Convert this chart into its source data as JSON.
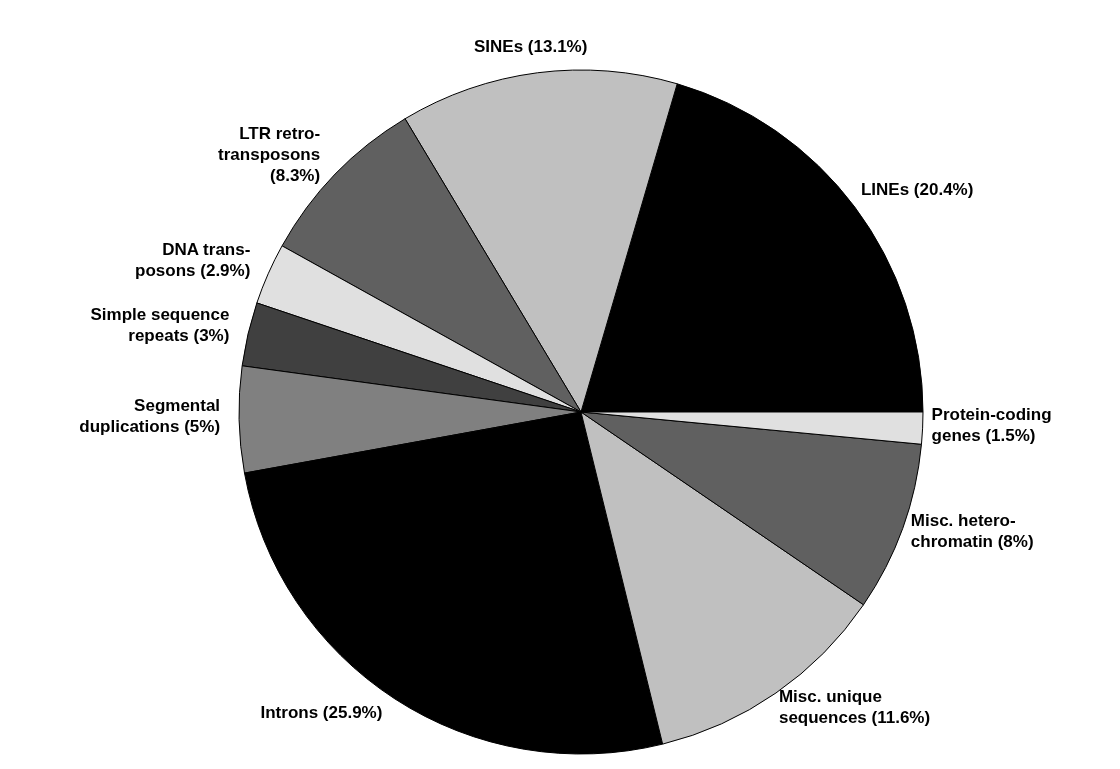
{
  "chart_data": {
    "type": "pie",
    "categories": [
      "LINEs (20.4%)",
      "SINEs (13.1%)",
      "LTR retro-\ntransposons\n(8.3%)",
      "DNA trans-\nposons (2.9%)",
      "Simple sequence\nrepeats (3%)",
      "Segmental\nduplications (5%)",
      "Introns (25.9%)",
      "Misc. unique\nsequences (11.6%)",
      "Misc. hetero-\nchromatin (8%)",
      "Protein-coding\ngenes (1.5%)"
    ],
    "values": [
      20.4,
      13.1,
      8.3,
      2.9,
      3,
      5,
      25.9,
      11.6,
      8,
      1.5
    ],
    "colors": [
      "#000000",
      "#c0c0c0",
      "#606060",
      "#e0e0e0",
      "#404040",
      "#808080",
      "#000000",
      "#c0c0c0",
      "#606060",
      "#e0e0e0"
    ]
  }
}
